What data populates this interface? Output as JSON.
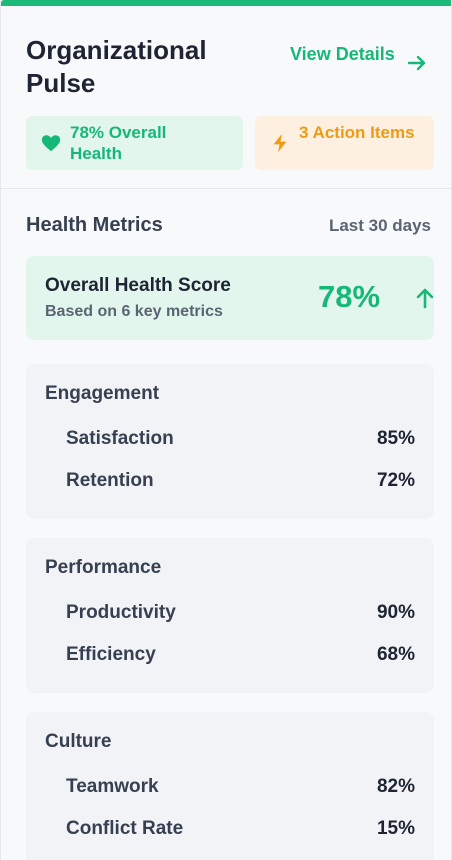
{
  "header": {
    "title": "Organizational Pulse",
    "view_details": "View Details",
    "accent_color": "#1db97a"
  },
  "badges": [
    {
      "icon": "heart-icon",
      "label": "78% Overall Health",
      "color": "#16b877"
    },
    {
      "icon": "lightning-icon",
      "label": "3 Action Items",
      "color": "#ef9a12"
    }
  ],
  "metrics_section": {
    "title": "Health Metrics",
    "period": "Last 30 days"
  },
  "score": {
    "title": "Overall Health Score",
    "subtitle": "Based on 6 key metrics",
    "value": "78%",
    "trend_icon": "arrow-up-icon"
  },
  "groups": [
    {
      "title": "Engagement",
      "items": [
        {
          "label": "Satisfaction",
          "value": "85%"
        },
        {
          "label": "Retention",
          "value": "72%"
        }
      ]
    },
    {
      "title": "Performance",
      "items": [
        {
          "label": "Productivity",
          "value": "90%"
        },
        {
          "label": "Efficiency",
          "value": "68%"
        }
      ]
    },
    {
      "title": "Culture",
      "items": [
        {
          "label": "Teamwork",
          "value": "82%"
        },
        {
          "label": "Conflict Rate",
          "value": "15%"
        }
      ]
    }
  ]
}
